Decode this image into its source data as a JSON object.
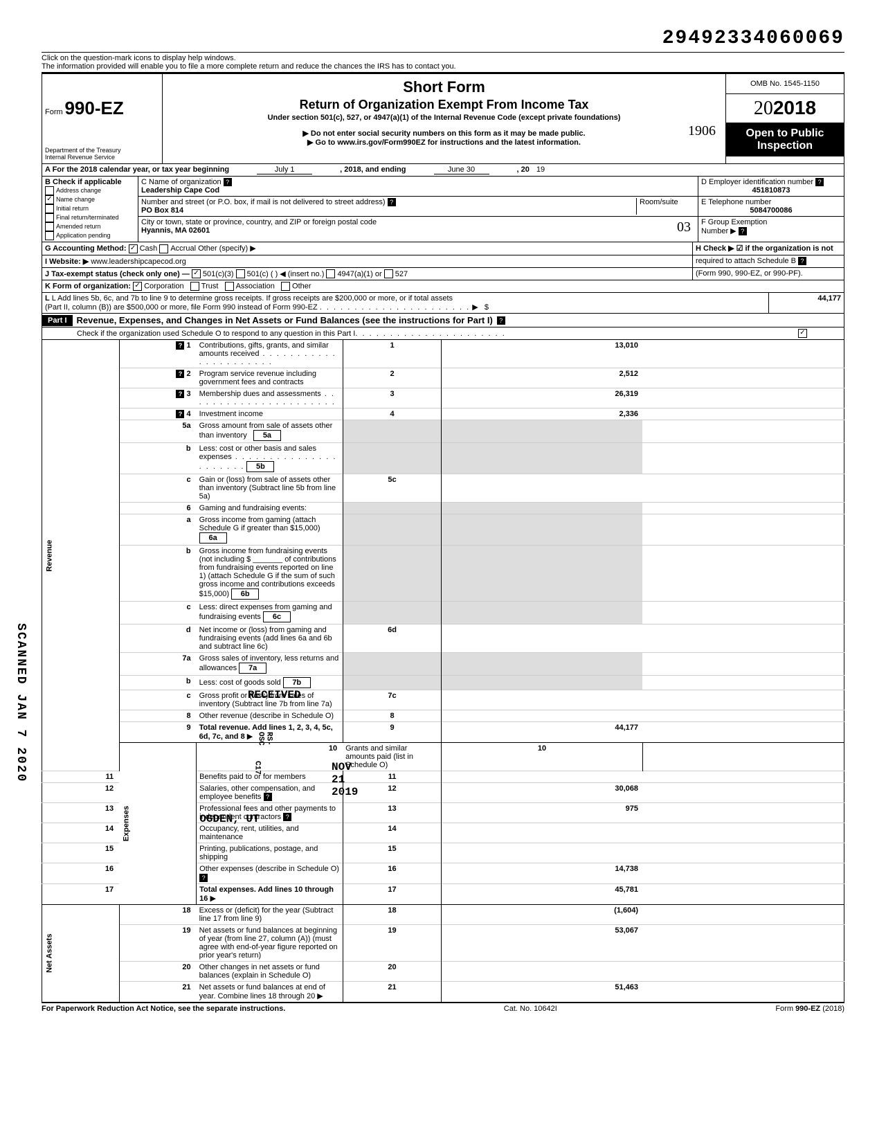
{
  "page_number": "29492334060069",
  "hint_line1": "Click on the question-mark icons to display help windows.",
  "hint_line2": "The information provided will enable you to file a more complete return and reduce the chances the IRS has to contact you.",
  "form": {
    "prefix": "Form",
    "number": "990-EZ",
    "dept": "Department of the Treasury\nInternal Revenue Service",
    "title": "Short Form",
    "subtitle": "Return of Organization Exempt From Income Tax",
    "under": "Under section 501(c), 527, or 4947(a)(1) of the Internal Revenue Code (except private foundations)",
    "note1": "▶ Do not enter social security numbers on this form as it may be made public.",
    "note2": "▶ Go to www.irs.gov/Form990EZ for instructions and the latest information.",
    "handwritten_top": "1906",
    "omb": "OMB No. 1545-1150",
    "year": "2018",
    "otp": "Open to Public Inspection"
  },
  "line_a": {
    "label_prefix": "A For the 2018 calendar year, or tax year beginning",
    "begin": "July 1",
    "mid": ", 2018, and ending",
    "end": "June 30",
    "year_prefix": ", 20",
    "year_val": "19"
  },
  "section_b": {
    "label": "B Check if applicable",
    "items": [
      {
        "label": "Address change",
        "checked": false
      },
      {
        "label": "Name change",
        "checked": true
      },
      {
        "label": "Initial return",
        "checked": false
      },
      {
        "label": "Final return/terminated",
        "checked": false
      },
      {
        "label": "Amended return",
        "checked": false
      },
      {
        "label": "Application pending",
        "checked": false
      }
    ]
  },
  "section_c": {
    "name_label": "C Name of organization",
    "name": "Leadership Cape Cod",
    "addr_label": "Number and street (or P.O. box, if mail is not delivered to street address)",
    "room_label": "Room/suite",
    "addr": "PO Box 814",
    "city_label": "City or town, state or province, country, and ZIP or foreign postal code",
    "city": "Hyannis, MA 02601",
    "handwritten_city": "03"
  },
  "section_d": {
    "label": "D Employer identification number",
    "value": "451810873"
  },
  "section_e": {
    "label": "E Telephone number",
    "value": "5084700086"
  },
  "section_f": {
    "label": "F Group Exemption",
    "sub": "Number ▶"
  },
  "section_g": {
    "label": "G Accounting Method:",
    "cash": "Cash",
    "accrual": "Accrual",
    "other": "Other (specify) ▶"
  },
  "section_h": {
    "line1": "H Check ▶ ☑ if the organization is not",
    "line2": "required to attach Schedule B",
    "line3": "(Form 990, 990-EZ, or 990-PF)."
  },
  "section_i": {
    "label": "I Website: ▶",
    "value": "www.leadershipcapecod.org"
  },
  "section_j": {
    "label": "J Tax-exempt status (check only one) —",
    "opts": [
      "501(c)(3)",
      "501(c) (          ) ◀ (insert no.)",
      "4947(a)(1) or",
      "527"
    ]
  },
  "section_k": {
    "label": "K Form of organization:",
    "opts": [
      "Corporation",
      "Trust",
      "Association",
      "Other"
    ]
  },
  "section_l": {
    "text": "L Add lines 5b, 6c, and 7b to line 9 to determine gross receipts. If gross receipts are $200,000 or more, or if total assets",
    "text2": "(Part II, column (B)) are $500,000 or more, file Form 990 instead of Form 990-EZ",
    "arrow": "▶",
    "value": "44,177"
  },
  "part1": {
    "label": "Part I",
    "title": "Revenue, Expenses, and Changes in Net Assets or Fund Balances (see the instructions for Part I)",
    "check_line": "Check if the organization used Schedule O to respond to any question in this Part I"
  },
  "revenue_label": "Revenue",
  "expenses_label": "Expenses",
  "netassets_label": "Net Assets",
  "lines": {
    "l1": {
      "num": "1",
      "desc": "Contributions, gifts, grants, and similar amounts received",
      "box": "1",
      "val": "13,010"
    },
    "l2": {
      "num": "2",
      "desc": "Program service revenue including government fees and contracts",
      "box": "2",
      "val": "2,512"
    },
    "l3": {
      "num": "3",
      "desc": "Membership dues and assessments",
      "box": "3",
      "val": "26,319"
    },
    "l4": {
      "num": "4",
      "desc": "Investment income",
      "box": "4",
      "val": "2,336"
    },
    "l5a": {
      "num": "5a",
      "desc": "Gross amount from sale of assets other than inventory",
      "mid": "5a"
    },
    "l5b": {
      "num": "b",
      "desc": "Less: cost or other basis and sales expenses",
      "mid": "5b"
    },
    "l5c": {
      "num": "c",
      "desc": "Gain or (loss) from sale of assets other than inventory (Subtract line 5b from line 5a)",
      "box": "5c"
    },
    "l6": {
      "num": "6",
      "desc": "Gaming and fundraising events:"
    },
    "l6a": {
      "num": "a",
      "desc": "Gross income from gaming (attach Schedule G if greater than $15,000)",
      "mid": "6a"
    },
    "l6b": {
      "num": "b",
      "desc": "Gross income from fundraising events (not including  $ _______ of contributions from fundraising events reported on line 1) (attach Schedule G if the sum of such gross income and contributions exceeds $15,000)",
      "mid": "6b"
    },
    "l6c": {
      "num": "c",
      "desc": "Less: direct expenses from gaming and fundraising events",
      "mid": "6c"
    },
    "l6d": {
      "num": "d",
      "desc": "Net income or (loss) from gaming and fundraising events (add lines 6a and 6b and subtract line 6c)",
      "box": "6d"
    },
    "l7a": {
      "num": "7a",
      "desc": "Gross sales of inventory, less returns and allowances",
      "mid": "7a"
    },
    "l7b": {
      "num": "b",
      "desc": "Less: cost of goods sold",
      "mid": "7b"
    },
    "l7c": {
      "num": "c",
      "desc": "Gross profit or (loss) from sales of inventory (Subtract line 7b from line 7a)",
      "box": "7c"
    },
    "l8": {
      "num": "8",
      "desc": "Other revenue (describe in Schedule O)",
      "box": "8"
    },
    "l9": {
      "num": "9",
      "desc": "Total revenue. Add lines 1, 2, 3, 4, 5c, 6d, 7c, and 8",
      "box": "9",
      "val": "44,177"
    },
    "l10": {
      "num": "10",
      "desc": "Grants and similar amounts paid (list in Schedule O)",
      "box": "10"
    },
    "l11": {
      "num": "11",
      "desc": "Benefits paid to or for members",
      "box": "11"
    },
    "l12": {
      "num": "12",
      "desc": "Salaries, other compensation, and employee benefits",
      "box": "12",
      "val": "30,068"
    },
    "l13": {
      "num": "13",
      "desc": "Professional fees and other payments to independent contractors",
      "box": "13",
      "val": "975"
    },
    "l14": {
      "num": "14",
      "desc": "Occupancy, rent, utilities, and maintenance",
      "box": "14"
    },
    "l15": {
      "num": "15",
      "desc": "Printing, publications, postage, and shipping",
      "box": "15"
    },
    "l16": {
      "num": "16",
      "desc": "Other expenses (describe in Schedule O)",
      "box": "16",
      "val": "14,738"
    },
    "l17": {
      "num": "17",
      "desc": "Total expenses. Add lines 10 through 16",
      "box": "17",
      "val": "45,781"
    },
    "l18": {
      "num": "18",
      "desc": "Excess or (deficit) for the year (Subtract line 17 from line 9)",
      "box": "18",
      "val": "(1,604)"
    },
    "l19": {
      "num": "19",
      "desc": "Net assets or fund balances at beginning of year (from line 27, column (A)) (must agree with end-of-year figure reported on prior year's return)",
      "box": "19",
      "val": "53,067"
    },
    "l20": {
      "num": "20",
      "desc": "Other changes in net assets or fund balances (explain in Schedule O)",
      "box": "20"
    },
    "l21": {
      "num": "21",
      "desc": "Net assets or fund balances at end of year. Combine lines 18 through 20",
      "box": "21",
      "val": "51,463"
    }
  },
  "stamps": {
    "received": "RECEIVED",
    "date": "NOV 21 2019",
    "city": "OGDEN, UT",
    "rs": "RS-OSC",
    "c17": "C17"
  },
  "footer": {
    "left": "For Paperwork Reduction Act Notice, see the separate instructions.",
    "mid": "Cat. No. 10642I",
    "right": "Form 990-EZ (2018)"
  },
  "side_text": "SCANNED JAN 7 2020"
}
